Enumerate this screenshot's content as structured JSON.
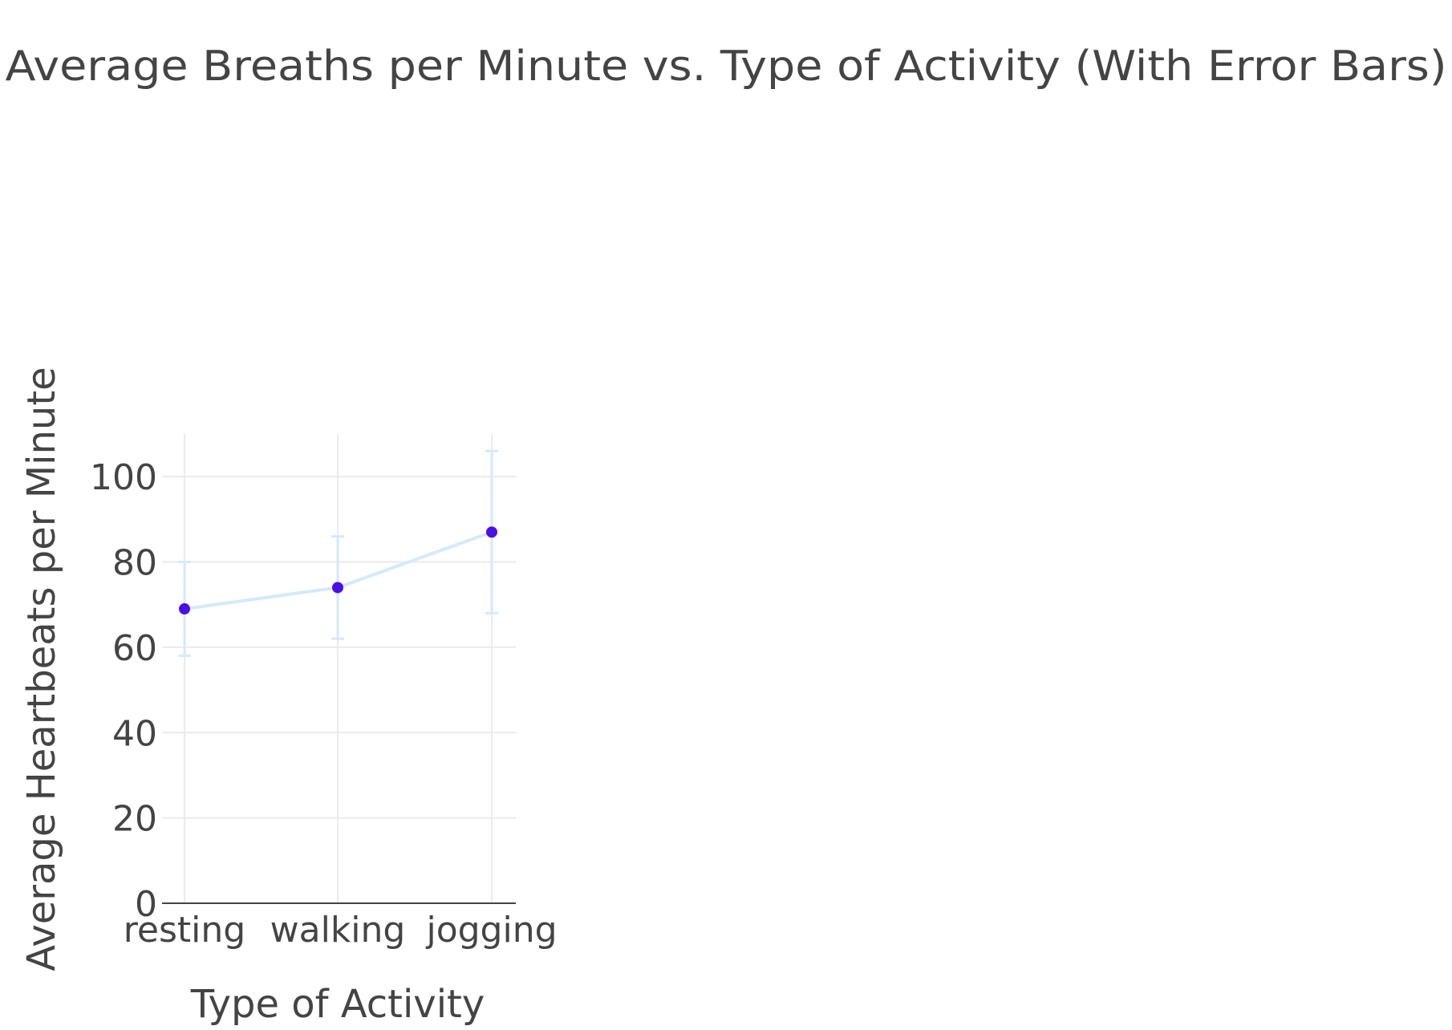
{
  "chart_data": {
    "type": "line",
    "title": "Average Breaths per Minute vs. Type of Activity (With Error Bars)",
    "xlabel": "Type of Activity",
    "ylabel": "Average Heartbeats per Minute",
    "categories": [
      "resting",
      "walking",
      "jogging"
    ],
    "series": [
      {
        "values": [
          69,
          74,
          87
        ],
        "error_plus": [
          11,
          12,
          19
        ],
        "error_minus": [
          11,
          12,
          19
        ]
      }
    ],
    "ylim": [
      0,
      110
    ],
    "yticks": [
      0,
      20,
      40,
      60,
      80,
      100
    ],
    "ytick_labels": [
      "0",
      "20",
      "40",
      "60",
      "80",
      "100"
    ],
    "grid": true,
    "legend": false,
    "colors": {
      "line": "#d3eafb",
      "marker": "#4b0ee6",
      "error_bar": "#d3eafb",
      "grid": "#ebebeb",
      "axis": "#444444",
      "text": "#444444"
    }
  }
}
